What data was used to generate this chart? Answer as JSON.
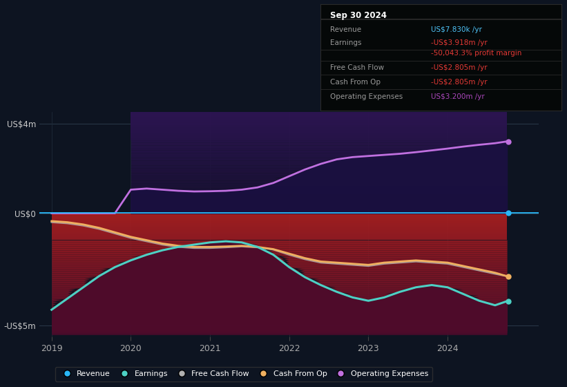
{
  "bg_color": "#0d1421",
  "plot_bg": "#0d1421",
  "title": "Sep 30 2024",
  "info_box_rows": [
    {
      "label": "Revenue",
      "value": "US$7.830k /yr",
      "value_color": "#4fc3f7"
    },
    {
      "label": "Earnings",
      "value": "-US$3.918m /yr",
      "value_color": "#e53935"
    },
    {
      "label": "",
      "value": "-50,043.3% profit margin",
      "value_color": "#e53935"
    },
    {
      "label": "Free Cash Flow",
      "value": "-US$2.805m /yr",
      "value_color": "#e53935"
    },
    {
      "label": "Cash From Op",
      "value": "-US$2.805m /yr",
      "value_color": "#e53935"
    },
    {
      "label": "Operating Expenses",
      "value": "US$3.200m /yr",
      "value_color": "#ab47bc"
    }
  ],
  "x_years": [
    2019.0,
    2019.2,
    2019.4,
    2019.6,
    2019.8,
    2020.0,
    2020.2,
    2020.4,
    2020.6,
    2020.8,
    2021.0,
    2021.2,
    2021.4,
    2021.6,
    2021.8,
    2022.0,
    2022.2,
    2022.4,
    2022.6,
    2022.8,
    2023.0,
    2023.2,
    2023.4,
    2023.6,
    2023.8,
    2024.0,
    2024.2,
    2024.4,
    2024.6,
    2024.75
  ],
  "earnings": [
    -4.3,
    -3.8,
    -3.3,
    -2.8,
    -2.4,
    -2.1,
    -1.85,
    -1.65,
    -1.5,
    -1.4,
    -1.3,
    -1.25,
    -1.3,
    -1.5,
    -1.85,
    -2.4,
    -2.85,
    -3.2,
    -3.5,
    -3.75,
    -3.9,
    -3.75,
    -3.5,
    -3.3,
    -3.2,
    -3.3,
    -3.6,
    -3.9,
    -4.1,
    -3.918
  ],
  "cash_from_op": [
    -0.35,
    -0.4,
    -0.5,
    -0.65,
    -0.85,
    -1.05,
    -1.2,
    -1.35,
    -1.45,
    -1.5,
    -1.5,
    -1.48,
    -1.45,
    -1.5,
    -1.6,
    -1.8,
    -2.0,
    -2.15,
    -2.2,
    -2.25,
    -2.3,
    -2.2,
    -2.15,
    -2.1,
    -2.15,
    -2.2,
    -2.35,
    -2.5,
    -2.65,
    -2.805
  ],
  "free_cash_flow": [
    -0.4,
    -0.45,
    -0.55,
    -0.7,
    -0.9,
    -1.1,
    -1.25,
    -1.4,
    -1.5,
    -1.55,
    -1.55,
    -1.52,
    -1.48,
    -1.52,
    -1.62,
    -1.85,
    -2.05,
    -2.2,
    -2.25,
    -2.3,
    -2.35,
    -2.25,
    -2.2,
    -2.15,
    -2.2,
    -2.25,
    -2.4,
    -2.55,
    -2.7,
    -2.805
  ],
  "operating_expenses": [
    0.0,
    0.0,
    0.0,
    0.0,
    0.0,
    1.05,
    1.1,
    1.05,
    1.0,
    0.97,
    0.98,
    1.0,
    1.05,
    1.15,
    1.35,
    1.65,
    1.95,
    2.2,
    2.4,
    2.5,
    2.55,
    2.6,
    2.65,
    2.72,
    2.8,
    2.88,
    2.97,
    3.05,
    3.12,
    3.2
  ],
  "ylim": [
    -5.5,
    4.5
  ],
  "ytick_positions": [
    -5,
    0,
    4
  ],
  "ytick_labels": [
    "-US$5m",
    "US$0",
    "US$4m"
  ],
  "xticks": [
    2019,
    2020,
    2021,
    2022,
    2023,
    2024
  ],
  "revenue_color": "#29b6f6",
  "earnings_color": "#4dd0c4",
  "fcf_color": "#b0b0b0",
  "cashop_color": "#f0b060",
  "opex_color": "#c070e0",
  "opex_fill_color": "#1a1040",
  "earnings_fill_top": "#aa2020",
  "earnings_fill_bot": "#2a1020"
}
